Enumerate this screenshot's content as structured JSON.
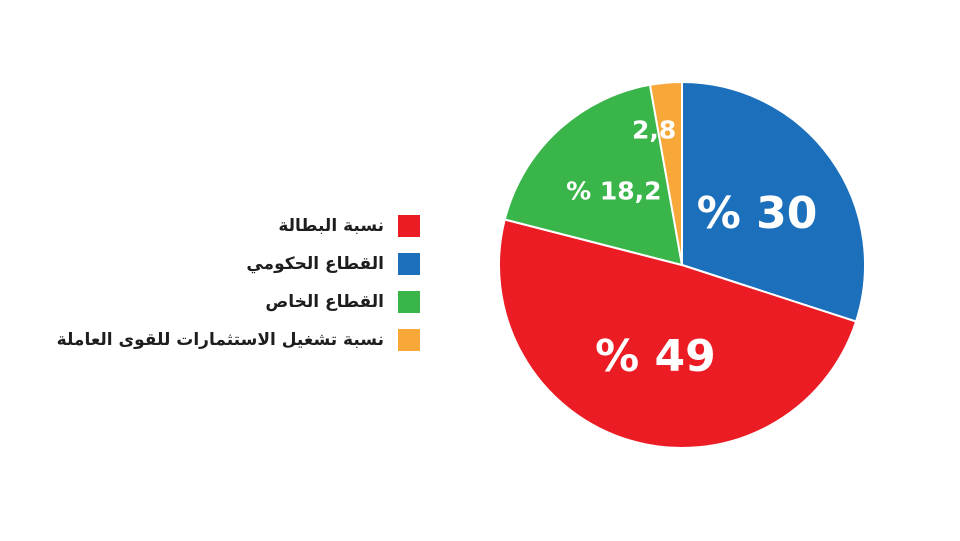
{
  "chart_data": {
    "type": "pie",
    "start_angle_deg": 0,
    "direction": "clockwise",
    "slices": [
      {
        "label": "القطاع الحكومي",
        "value": 30,
        "display": "% 30",
        "color": "#1c6fbb"
      },
      {
        "label": "نسبة البطالة",
        "value": 49,
        "display": "% 49",
        "color": "#ec1c24"
      },
      {
        "label": "القطاع الخاص",
        "value": 18.2,
        "display": "% 18,2",
        "color": "#3ab54a"
      },
      {
        "label": "نسبة تشغيل الاستثمارات للقوى العاملة",
        "value": 2.8,
        "display": "2,8",
        "color": "#f7a839"
      }
    ],
    "legend": {
      "placement": "left",
      "items": [
        {
          "label": "نسبة البطالة",
          "color": "#ec1c24"
        },
        {
          "label": "القطاع الحكومي",
          "color": "#1c6fbb"
        },
        {
          "label": "القطاع الخاص",
          "color": "#3ab54a"
        },
        {
          "label": "نسبة تشغيل الاستثمارات للقوى العاملة",
          "color": "#f7a839"
        }
      ]
    }
  }
}
